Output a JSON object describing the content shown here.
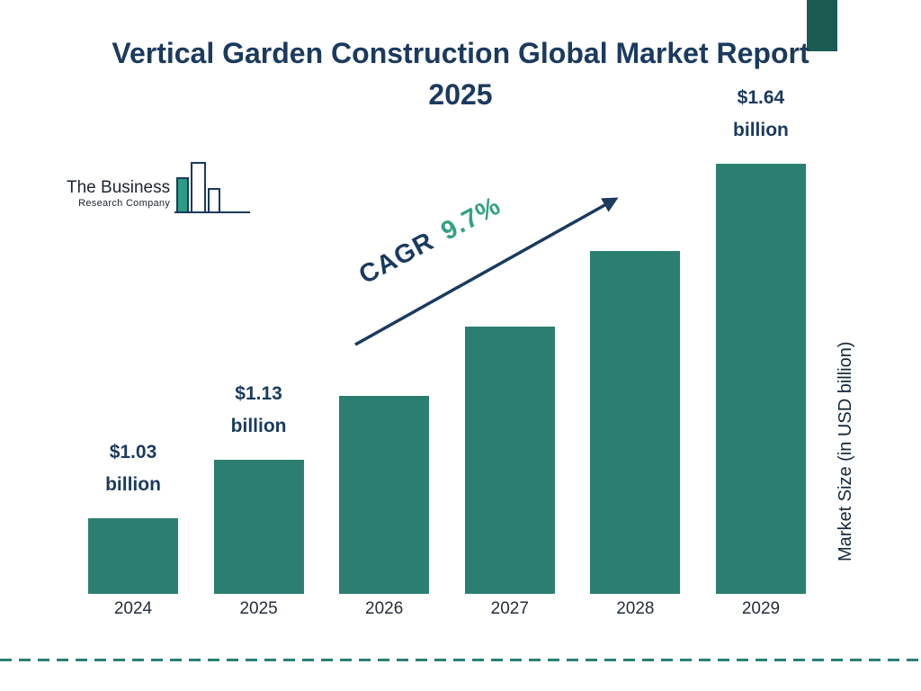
{
  "logo": {
    "line1": "The Business",
    "line2": "Research Company"
  },
  "chart_data": {
    "type": "bar",
    "title": "Vertical Garden Construction Global Market Report 2025",
    "categories": [
      "2024",
      "2025",
      "2026",
      "2027",
      "2028",
      "2029"
    ],
    "values": [
      1.03,
      1.13,
      1.24,
      1.36,
      1.49,
      1.64
    ],
    "data_labels": [
      "$1.03 billion",
      "$1.13 billion",
      "",
      "",
      "",
      "$1.64 billion"
    ],
    "xlabel": "",
    "ylabel": "Market Size (in USD billion)",
    "annotation": {
      "label": "CAGR",
      "value": "9.7%"
    },
    "legend": false,
    "grid": false,
    "bar_color": "#2b7f70",
    "title_color": "#1b3a5e",
    "cagr_value_color": "#33a183",
    "arrow_color": "#1b3a5e",
    "dashed_line_color": "#2a8073"
  }
}
